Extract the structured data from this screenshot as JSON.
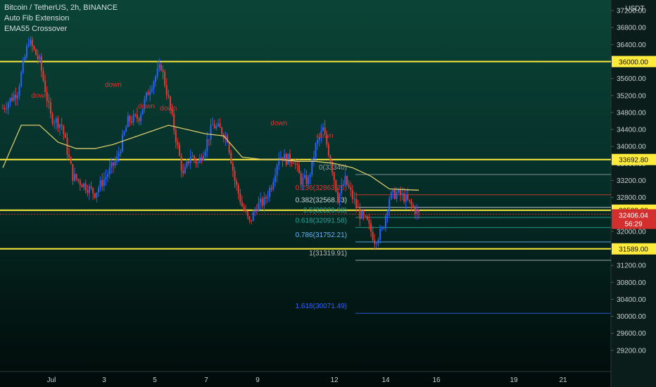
{
  "legend": {
    "symbol": "Bitcoin / TetherUS, 2h, BINANCE",
    "indicator1": "Auto Fib Extension",
    "indicator2": "EMA55 Crossover"
  },
  "currency": "USDT",
  "colors": {
    "up": "#2962ff",
    "down": "#e53935",
    "ema": "#d9c96a",
    "level": "#ffeb3b",
    "price_label_bg": "#ffeb3b",
    "last_price_bg": "#d32f2f"
  },
  "chart_data": {
    "type": "candlestick",
    "title": "Bitcoin / TetherUS, 2h, BINANCE",
    "y_ticks": [
      29200,
      29600,
      30000,
      30400,
      30800,
      31200,
      31600,
      32000,
      32400,
      32800,
      33200,
      33600,
      34000,
      34400,
      34800,
      35200,
      35600,
      36000,
      36400,
      36800,
      37200
    ],
    "x_ticks": [
      "Jul",
      "3",
      "5",
      "7",
      "9",
      "12",
      "14",
      "16",
      "19",
      "21"
    ],
    "ylim": [
      28700,
      37450
    ],
    "price_path": [
      [
        0,
        34900
      ],
      [
        8,
        35300
      ],
      [
        14,
        36500
      ],
      [
        20,
        36000
      ],
      [
        26,
        34700
      ],
      [
        32,
        34500
      ],
      [
        38,
        33300
      ],
      [
        44,
        33100
      ],
      [
        50,
        32900
      ],
      [
        56,
        33300
      ],
      [
        62,
        33700
      ],
      [
        68,
        34600
      ],
      [
        74,
        34700
      ],
      [
        80,
        35400
      ],
      [
        86,
        35900
      ],
      [
        90,
        35100
      ],
      [
        94,
        34200
      ],
      [
        98,
        33300
      ],
      [
        102,
        33800
      ],
      [
        106,
        33600
      ],
      [
        110,
        34000
      ],
      [
        114,
        34500
      ],
      [
        118,
        34400
      ],
      [
        122,
        34200
      ],
      [
        126,
        33200
      ],
      [
        130,
        32600
      ],
      [
        134,
        32200
      ],
      [
        138,
        32600
      ],
      [
        142,
        32700
      ],
      [
        146,
        33100
      ],
      [
        150,
        33800
      ],
      [
        154,
        33700
      ],
      [
        158,
        33700
      ],
      [
        162,
        33200
      ],
      [
        166,
        33200
      ],
      [
        170,
        34000
      ],
      [
        174,
        34400
      ],
      [
        178,
        33700
      ],
      [
        182,
        32800
      ],
      [
        186,
        33200
      ],
      [
        190,
        32800
      ],
      [
        194,
        32400
      ],
      [
        198,
        32200
      ],
      [
        202,
        31800
      ],
      [
        206,
        32000
      ],
      [
        210,
        32800
      ],
      [
        214,
        32900
      ],
      [
        218,
        32800
      ],
      [
        222,
        32600
      ],
      [
        226,
        32400
      ]
    ],
    "ema_path": [
      [
        0,
        33500
      ],
      [
        10,
        34500
      ],
      [
        20,
        34500
      ],
      [
        30,
        34100
      ],
      [
        40,
        33950
      ],
      [
        50,
        33950
      ],
      [
        60,
        34050
      ],
      [
        70,
        34200
      ],
      [
        80,
        34350
      ],
      [
        90,
        34500
      ],
      [
        100,
        34400
      ],
      [
        110,
        34300
      ],
      [
        120,
        34250
      ],
      [
        130,
        33750
      ],
      [
        140,
        33700
      ],
      [
        150,
        33700
      ],
      [
        160,
        33650
      ],
      [
        170,
        33650
      ],
      [
        180,
        33600
      ],
      [
        190,
        33500
      ],
      [
        200,
        33300
      ],
      [
        210,
        33000
      ],
      [
        220,
        32980
      ],
      [
        226,
        32970
      ]
    ],
    "series": [
      {
        "name": "Bitcoin / TetherUS",
        "last": 32406.04
      },
      {
        "name": "EMA55"
      }
    ],
    "horizontal_levels": [
      36000.0,
      33692.8,
      32500.0,
      31589.0
    ],
    "fib_levels": [
      {
        "label": "0(33340)",
        "value": 33340,
        "color": "#9e9e9e"
      },
      {
        "label": "0.236(32863.26)",
        "value": 32863.26,
        "color": "#e53935"
      },
      {
        "label": "0.382(32568.33)",
        "value": 32568.33,
        "color": "#cfd8dc"
      },
      {
        "label": "0.5(32329.98)",
        "value": 32329.98,
        "color": "#26a69a"
      },
      {
        "label": "0.618(32091.58)",
        "value": 32091.58,
        "color": "#26a69a"
      },
      {
        "label": "0.786(31752.21)",
        "value": 31752.21,
        "color": "#64b5f6"
      },
      {
        "label": "1(31319.91)",
        "value": 31319.91,
        "color": "#bdbdbd"
      },
      {
        "label": "1.618(30071.49)",
        "value": 30071.49,
        "color": "#2962ff"
      }
    ],
    "signals": [
      {
        "text": "down",
        "x": 20,
        "value": 35150
      },
      {
        "text": "down",
        "x": 60,
        "value": 35400
      },
      {
        "text": "down",
        "x": 78,
        "value": 34900
      },
      {
        "text": "down",
        "x": 90,
        "value": 34850
      },
      {
        "text": "down",
        "x": 150,
        "value": 34500
      },
      {
        "text": "down",
        "x": 175,
        "value": 34200
      }
    ],
    "price_labels": {
      "level_36000": "36000.00",
      "level_33692": "33692.80",
      "level_32500": "32500.00",
      "level_31589": "31589.00",
      "last_price": "32406.04",
      "countdown": "56:29"
    }
  }
}
